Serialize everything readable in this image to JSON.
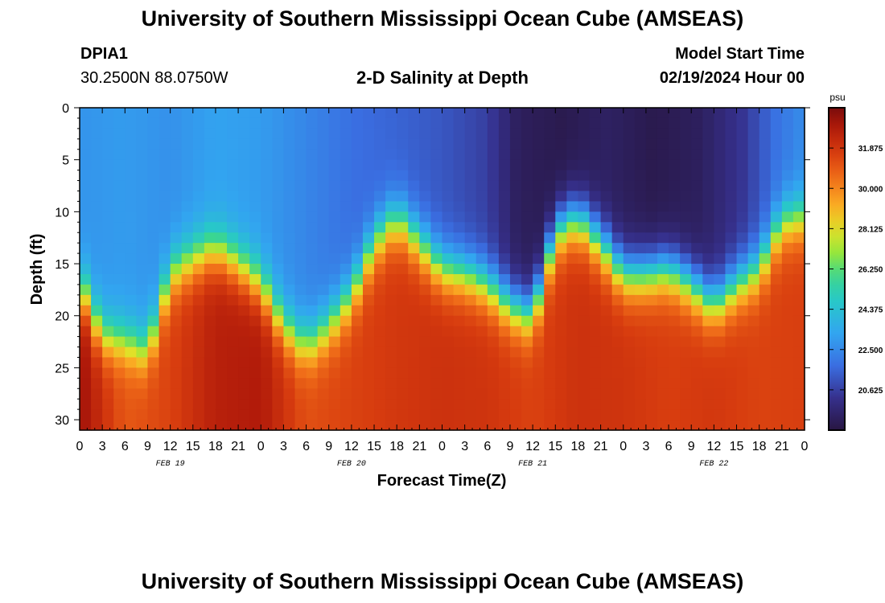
{
  "header": {
    "title": "University of Southern Mississippi Ocean Cube (AMSEAS)",
    "station_id": "DPIA1",
    "coordinates": "30.2500N  88.0750W",
    "plot_title": "2-D Salinity at Depth",
    "start_label": "Model Start Time",
    "start_value": "02/19/2024 Hour 00"
  },
  "footer": {
    "title": "University of Southern Mississippi Ocean Cube (AMSEAS)"
  },
  "colors": {
    "low": "#2a1846",
    "high": "#7a0c0c"
  },
  "chart_data": {
    "type": "heatmap",
    "xlabel": "Forecast Time(Z)",
    "ylabel": "Depth (ft)",
    "x_unit": "hours since 02/19/2024 00Z",
    "xlim": [
      0,
      96
    ],
    "ylim": [
      0,
      31
    ],
    "x_tick_values": [
      0,
      3,
      6,
      9,
      12,
      15,
      18,
      21,
      24,
      27,
      30,
      33,
      36,
      39,
      42,
      45,
      48,
      51,
      54,
      57,
      60,
      63,
      66,
      69,
      72,
      75,
      78,
      81,
      84,
      87,
      90,
      93,
      96
    ],
    "x_tick_labels": [
      "0",
      "3",
      "6",
      "9",
      "12",
      "15",
      "18",
      "21",
      "0",
      "3",
      "6",
      "9",
      "12",
      "15",
      "18",
      "21",
      "0",
      "3",
      "6",
      "9",
      "12",
      "15",
      "18",
      "21",
      "0",
      "3",
      "6",
      "9",
      "12",
      "15",
      "18",
      "21",
      "0"
    ],
    "y_ticks": [
      0,
      5,
      10,
      15,
      20,
      25,
      30
    ],
    "day_labels": [
      {
        "x": 12,
        "label": "FEB 19"
      },
      {
        "x": 36,
        "label": "FEB 20"
      },
      {
        "x": 60,
        "label": "FEB 21"
      },
      {
        "x": 84,
        "label": "FEB 22"
      }
    ],
    "colorbar": {
      "unit": "psu",
      "min": 18.75,
      "max": 33.75,
      "ticks": [
        "31.875",
        "30.000",
        "28.125",
        "26.250",
        "24.375",
        "22.500",
        "20.625"
      ],
      "tick_values": [
        31.875,
        30.0,
        28.125,
        26.25,
        24.375,
        22.5,
        20.625
      ]
    },
    "interface_depth_ft": {
      "hours": [
        0,
        3,
        6,
        9,
        12,
        15,
        18,
        21,
        24,
        27,
        30,
        33,
        36,
        39,
        42,
        45,
        48,
        51,
        54,
        57,
        60,
        63,
        66,
        69,
        72,
        75,
        78,
        81,
        84,
        87,
        90,
        93,
        96
      ],
      "depth": [
        17,
        22,
        22.5,
        23.5,
        16,
        14.5,
        13.5,
        15,
        17,
        21,
        23,
        21,
        18,
        13,
        10.5,
        13,
        15.5,
        16,
        17,
        19,
        20,
        12,
        10.5,
        13,
        16,
        16,
        15.5,
        17,
        19,
        17,
        15.5,
        11,
        10.5
      ]
    },
    "surface_salinity_psu": {
      "hours": [
        0,
        6,
        12,
        18,
        24,
        30,
        36,
        42,
        48,
        54,
        58,
        64,
        70,
        76,
        82,
        88,
        92,
        96
      ],
      "value": [
        22.8,
        23.0,
        22.7,
        23.2,
        23.0,
        22.4,
        21.8,
        21.5,
        21.2,
        20.6,
        19.3,
        19.0,
        19.4,
        19.0,
        19.3,
        20.4,
        21.8,
        22.6
      ]
    },
    "bottom_salinity_psu": {
      "hours": [
        0,
        6,
        12,
        18,
        24,
        30,
        36,
        42,
        48,
        54,
        60,
        66,
        72,
        78,
        84,
        90,
        96
      ],
      "value": [
        33.2,
        31.0,
        31.5,
        32.6,
        32.8,
        31.2,
        31.5,
        31.8,
        32.0,
        31.9,
        31.5,
        32.0,
        31.9,
        31.6,
        31.8,
        31.5,
        31.6
      ]
    }
  }
}
